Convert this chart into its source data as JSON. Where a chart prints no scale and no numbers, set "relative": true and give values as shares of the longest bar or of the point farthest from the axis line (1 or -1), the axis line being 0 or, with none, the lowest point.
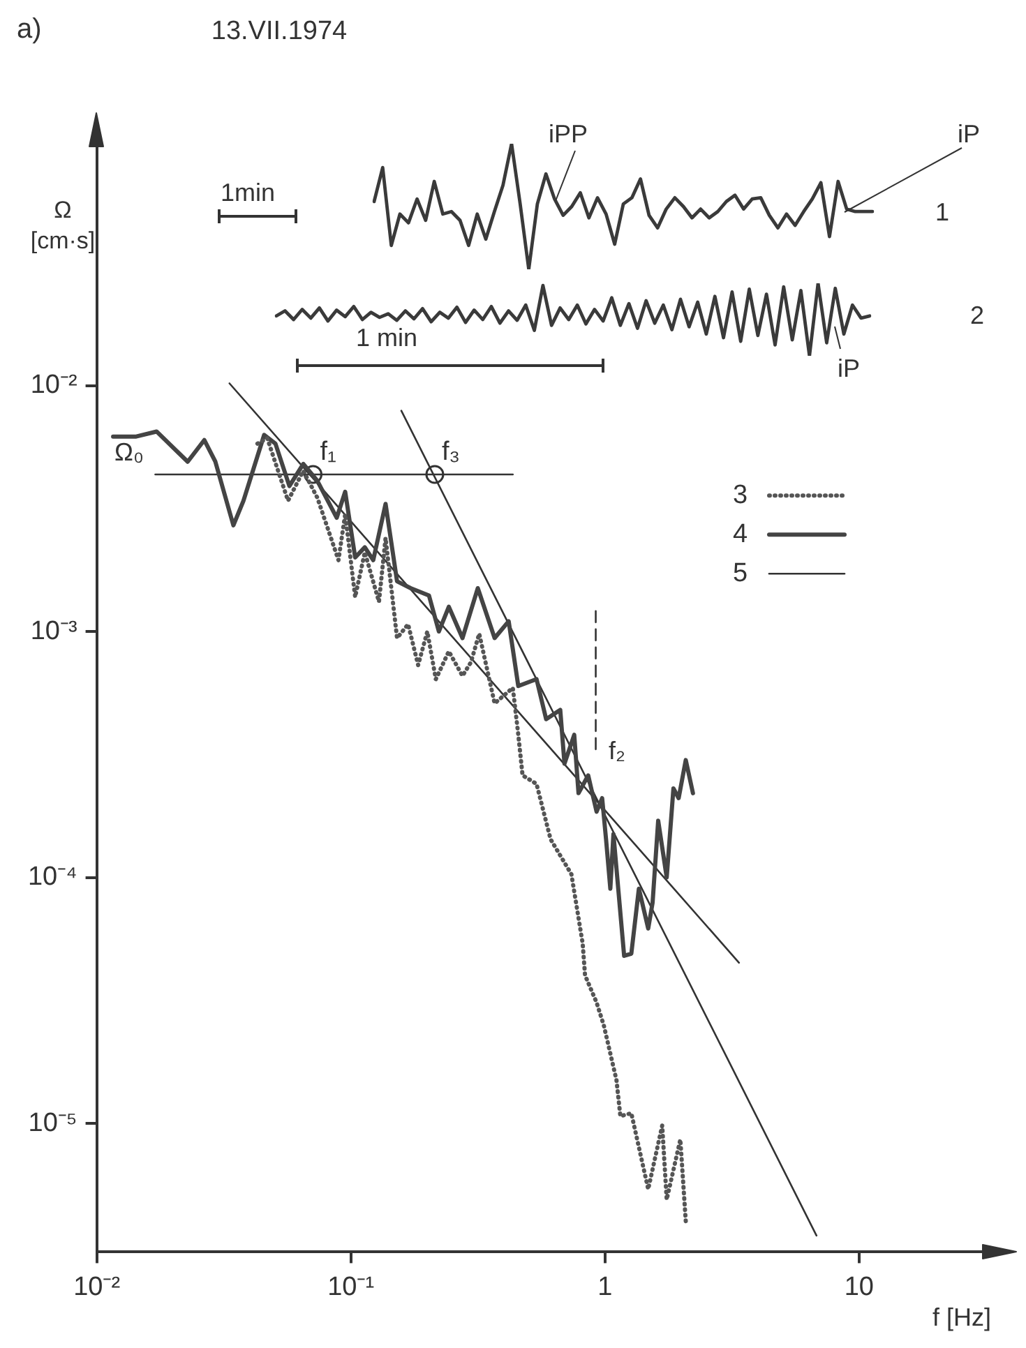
{
  "chart_data": [
    {
      "type": "line",
      "title": "13.VII.1974",
      "xlabel": "f [Hz]",
      "ylabel": "Ω [cm·s]",
      "log": "xy",
      "xlim": [
        0.01,
        40
      ],
      "ylim": [
        3e-06,
        0.1
      ],
      "xticks": [
        {
          "value": 0.01,
          "label": "10⁻²"
        },
        {
          "value": 0.1,
          "label": "10⁻¹"
        },
        1,
        10
      ],
      "yticks": [
        {
          "value": 1e-05,
          "label": "10⁻⁵"
        },
        {
          "value": 0.0001,
          "label": "10⁻⁴"
        },
        {
          "value": 0.001,
          "label": "10⁻³"
        },
        {
          "value": 0.01,
          "label": "10⁻²"
        }
      ],
      "grid": false,
      "legend": "top right",
      "marker": "none",
      "series": [
        {
          "name": "3",
          "color": "#555555",
          "line_style": "dotted",
          "x": [
            0.0429,
            0.0469,
            0.0566,
            0.065,
            0.0738,
            0.0894,
            0.095,
            0.104,
            0.1135,
            0.129,
            0.137,
            0.152,
            0.168,
            0.184,
            0.2,
            0.216,
            0.243,
            0.275,
            0.297,
            0.32,
            0.368,
            0.434,
            0.456,
            0.474,
            0.538,
            0.611,
            0.738,
            0.817,
            0.835,
            0.927,
            0.99,
            1.11,
            1.15,
            1.27,
            1.48,
            1.68,
            1.75,
            1.98,
            2.08
          ],
          "values": [
            0.0058,
            0.0061,
            0.0034,
            0.0045,
            0.0035,
            0.00195,
            0.003,
            0.00138,
            0.0021,
            0.00132,
            0.0024,
            0.00094,
            0.00107,
            0.00073,
            0.001,
            0.00064,
            0.00083,
            0.00066,
            0.00075,
            0.00098,
            0.00051,
            0.00059,
            0.00038,
            0.00026,
            0.00024,
            0.000143,
            0.000103,
            5.4e-05,
            4e-05,
            3.1e-05,
            2.5e-05,
            1.5e-05,
            1.07e-05,
            1.1e-05,
            5.4e-06,
            9.8e-06,
            4.9e-06,
            8.6e-06,
            4e-06
          ]
        },
        {
          "name": "4",
          "color": "#444444",
          "line_style": "solid",
          "x": [
            0.0116,
            0.0143,
            0.0172,
            0.0228,
            0.0265,
            0.0293,
            0.0345,
            0.0378,
            0.0456,
            0.0505,
            0.0573,
            0.065,
            0.0738,
            0.088,
            0.095,
            0.104,
            0.1135,
            0.1225,
            0.137,
            0.152,
            0.172,
            0.203,
            0.222,
            0.243,
            0.275,
            0.316,
            0.368,
            0.418,
            0.456,
            0.538,
            0.587,
            0.667,
            0.693,
            0.757,
            0.787,
            0.859,
            0.927,
            0.975,
            1.01,
            1.05,
            1.08,
            1.19,
            1.27,
            1.36,
            1.48,
            1.54,
            1.62,
            1.75,
            1.86,
            1.95,
            2.08,
            2.22
          ],
          "values": [
            0.0062,
            0.0062,
            0.0065,
            0.0049,
            0.006,
            0.0049,
            0.0027,
            0.0034,
            0.0063,
            0.0058,
            0.0039,
            0.0048,
            0.0041,
            0.0029,
            0.0037,
            0.002,
            0.0022,
            0.00195,
            0.0033,
            0.0016,
            0.0015,
            0.0014,
            0.001,
            0.00126,
            0.00094,
            0.0015,
            0.00094,
            0.0011,
            0.0006,
            0.00064,
            0.00044,
            0.00048,
            0.00029,
            0.00038,
            0.00022,
            0.00026,
            0.000185,
            0.00021,
            0.000143,
            9e-05,
            0.00015,
            4.8e-05,
            4.9e-05,
            9e-05,
            6.2e-05,
            7.9e-05,
            0.00017,
            0.0001,
            0.00023,
            0.00021,
            0.0003,
            0.00022
          ]
        },
        {
          "name": "5",
          "color": "#333333",
          "line_style": "solid",
          "x": [
            0.0333,
            3.37
          ],
          "values": [
            0.0102,
            4.5e-05
          ]
        },
        {
          "color": "#333333",
          "line_style": "solid",
          "x": [
            0.158,
            6.8
          ],
          "values": [
            0.0079,
            3.5e-06
          ]
        },
        {
          "color": "#333333",
          "line_style": "solid",
          "x": [
            0.017,
            0.434
          ],
          "values": [
            0.00435,
            0.00435
          ]
        },
        {
          "color": "#333333",
          "line_style": "dashed",
          "x": [
            0.92,
            0.92
          ],
          "values": [
            0.00121,
            0.00032
          ]
        },
        {
          "type": "scatter",
          "marker": "circle",
          "color": "#333333",
          "x": [
            0.071,
            0.214
          ],
          "values": [
            0.00435,
            0.00435
          ]
        }
      ],
      "annotations": [
        "a)",
        "Ω₀",
        {
          "text": "f₁",
          "x": 0.071,
          "y": 0.00435
        },
        {
          "text": "f₃",
          "x": 0.214,
          "y": 0.00435
        },
        "f₂"
      ]
    },
    {
      "type": "line",
      "relative": true,
      "categories": [
        null,
        null,
        null,
        null,
        null,
        null,
        null,
        null,
        null,
        null,
        null,
        null,
        null,
        null,
        null,
        null,
        null,
        null,
        null,
        null,
        null,
        null,
        null,
        null,
        null,
        null,
        null,
        null,
        null,
        null,
        null,
        null,
        null,
        null,
        null,
        null,
        null,
        null,
        null,
        null,
        null,
        null,
        null,
        null,
        null,
        null,
        null,
        null,
        null,
        null,
        null,
        null,
        null,
        null,
        null,
        null,
        null,
        null,
        null
      ],
      "series": [
        {
          "color": "#3a3a3a",
          "values": [
            0.54,
            0.81,
            0.19,
            0.44,
            0.37,
            0.56,
            0.39,
            0.7,
            0.44,
            0.46,
            0.39,
            0.19,
            0.44,
            0.24,
            0.46,
            0.67,
            1,
            0.52,
            0,
            0.52,
            0.76,
            0.56,
            0.43,
            0.5,
            0.61,
            0.41,
            0.57,
            0.44,
            0.2,
            0.52,
            0.57,
            0.72,
            0.43,
            0.33,
            0.48,
            0.57,
            0.5,
            0.41,
            0.48,
            0.41,
            0.46,
            0.54,
            0.59,
            0.48,
            0.56,
            0.57,
            0.43,
            0.33,
            0.44,
            0.35,
            0.46,
            0.56,
            0.69,
            0.26,
            0.7,
            0.48,
            0.46,
            0.46,
            0.46
          ]
        }
      ],
      "annotations": [
        "1min",
        "iPP",
        "iP",
        "1"
      ]
    },
    {
      "type": "line",
      "relative": true,
      "categories": [
        null,
        null,
        null,
        null,
        null,
        null,
        null,
        null,
        null,
        null,
        null,
        null,
        null,
        null,
        null,
        null,
        null,
        null,
        null,
        null,
        null,
        null,
        null,
        null,
        null,
        null,
        null,
        null,
        null,
        null,
        null,
        null,
        null,
        null,
        null,
        null,
        null,
        null,
        null,
        null,
        null,
        null,
        null,
        null,
        null,
        null,
        null,
        null,
        null,
        null,
        null,
        null,
        null,
        null,
        null,
        null,
        null,
        null,
        null,
        null,
        null,
        null,
        null,
        null,
        null,
        null,
        null,
        null,
        null,
        null
      ],
      "series": [
        {
          "color": "#3a3a3a",
          "values": [
            0.55,
            0.62,
            0.5,
            0.64,
            0.52,
            0.66,
            0.48,
            0.63,
            0.54,
            0.68,
            0.5,
            0.6,
            0.53,
            0.58,
            0.49,
            0.62,
            0.51,
            0.65,
            0.47,
            0.6,
            0.52,
            0.67,
            0.46,
            0.63,
            0.5,
            0.68,
            0.45,
            0.62,
            0.49,
            0.7,
            0.35,
            0.97,
            0.42,
            0.66,
            0.5,
            0.7,
            0.44,
            0.64,
            0.48,
            0.8,
            0.42,
            0.72,
            0.38,
            0.76,
            0.45,
            0.7,
            0.36,
            0.78,
            0.4,
            0.74,
            0.3,
            0.82,
            0.25,
            0.88,
            0.2,
            0.92,
            0.28,
            0.85,
            0.15,
            0.95,
            0.22,
            0.9,
            0,
            1,
            0.18,
            0.93,
            0.3,
            0.7,
            0.52,
            0.55
          ]
        }
      ],
      "annotations": [
        "1 min",
        "iP",
        "2"
      ]
    }
  ]
}
